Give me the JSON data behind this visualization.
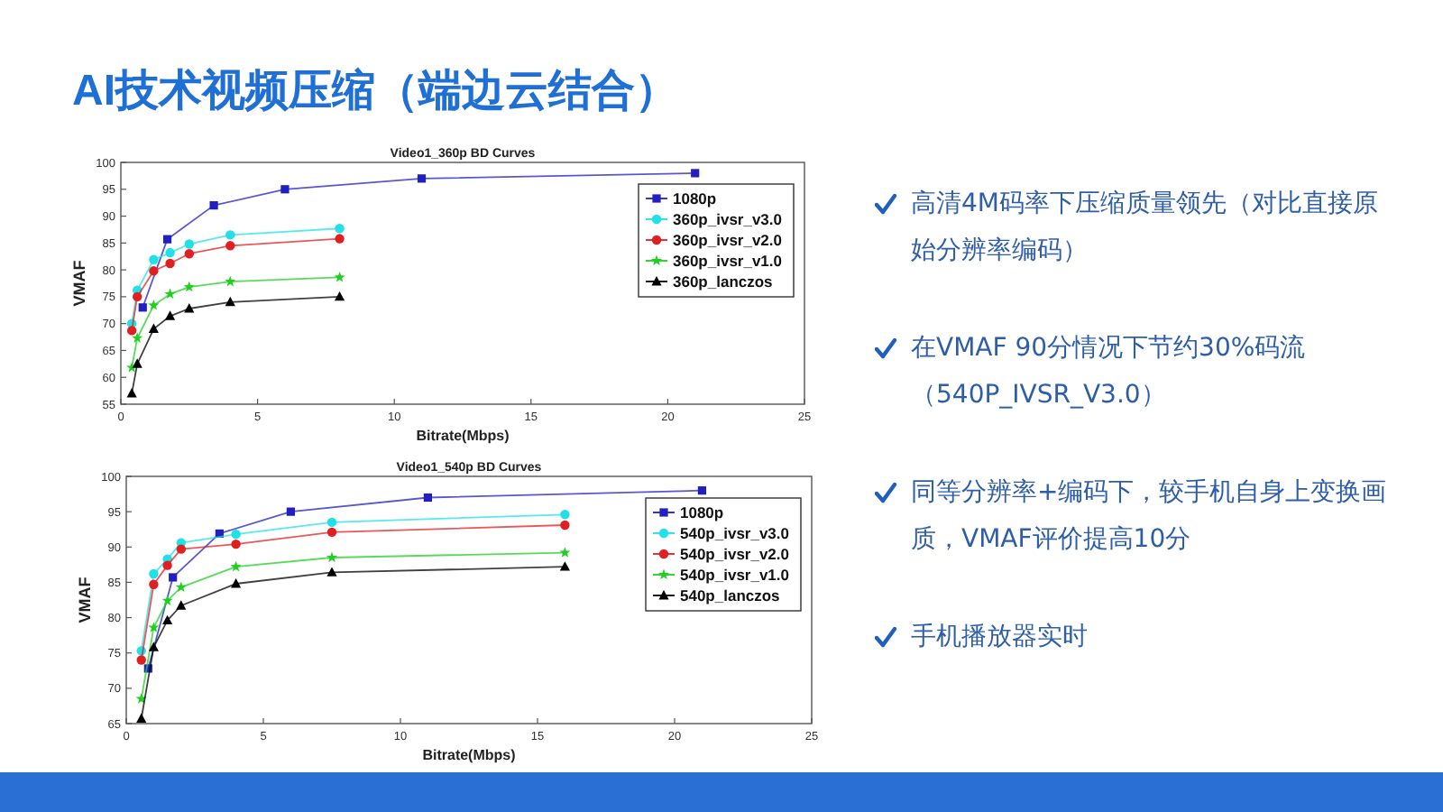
{
  "chart_data": [
    {
      "type": "line",
      "title": "Video1_360p  BD Curves",
      "xlabel": "Bitrate(Mbps)",
      "ylabel": "VMAF",
      "xlim": [
        0,
        25
      ],
      "ylim": [
        55,
        100
      ],
      "xticks": [
        0,
        5,
        10,
        15,
        20,
        25
      ],
      "yticks": [
        55,
        60,
        65,
        70,
        75,
        80,
        85,
        90,
        95,
        100
      ],
      "legend": "top right",
      "series": [
        {
          "name": "1080p",
          "color": "#2020c0",
          "marker": "square",
          "x": [
            0.8,
            1.7,
            3.4,
            6,
            11,
            21
          ],
          "values": [
            73,
            85.7,
            92,
            95,
            97,
            98
          ]
        },
        {
          "name": "360p_ivsr_v3.0",
          "color": "#20e0e8",
          "marker": "circle",
          "x": [
            0.4,
            0.6,
            1.2,
            1.8,
            2.5,
            4,
            8
          ],
          "values": [
            70,
            76.2,
            81.9,
            83.2,
            84.8,
            86.5,
            87.7
          ]
        },
        {
          "name": "360p_ivsr_v2.0",
          "color": "#e02020",
          "marker": "circle",
          "x": [
            0.4,
            0.6,
            1.2,
            1.8,
            2.5,
            4,
            8
          ],
          "values": [
            68.7,
            75,
            79.8,
            81.2,
            83,
            84.5,
            85.8
          ]
        },
        {
          "name": "360p_ivsr_v1.0",
          "color": "#20d020",
          "marker": "star",
          "x": [
            0.4,
            0.6,
            1.2,
            1.8,
            2.5,
            4,
            8
          ],
          "values": [
            61.8,
            67.3,
            73.4,
            75.5,
            76.8,
            77.8,
            78.6
          ]
        },
        {
          "name": "360p_lanczos",
          "color": "#000000",
          "marker": "triangle",
          "x": [
            0.4,
            0.6,
            1.2,
            1.8,
            2.5,
            4,
            8
          ],
          "values": [
            57,
            62.5,
            69,
            71.4,
            72.8,
            74,
            75
          ]
        }
      ]
    },
    {
      "type": "line",
      "title": "Video1_540p  BD Curves",
      "xlabel": "Bitrate(Mbps)",
      "ylabel": "VMAF",
      "xlim": [
        0,
        25
      ],
      "ylim": [
        65,
        100
      ],
      "xticks": [
        0,
        5,
        10,
        15,
        20,
        25
      ],
      "yticks": [
        65,
        70,
        75,
        80,
        85,
        90,
        95,
        100
      ],
      "legend": "top right",
      "series": [
        {
          "name": "1080p",
          "color": "#2020c0",
          "marker": "square",
          "x": [
            0.8,
            1.7,
            3.4,
            6,
            11,
            21
          ],
          "values": [
            72.8,
            85.7,
            91.9,
            95,
            97,
            98
          ]
        },
        {
          "name": "540p_ivsr_v3.0",
          "color": "#20e0e8",
          "marker": "circle",
          "x": [
            0.55,
            1,
            1.5,
            2,
            4,
            7.5,
            16
          ],
          "values": [
            75.3,
            86.2,
            88.3,
            90.6,
            91.8,
            93.5,
            94.6
          ]
        },
        {
          "name": "540p_ivsr_v2.0",
          "color": "#e02020",
          "marker": "circle",
          "x": [
            0.55,
            1,
            1.5,
            2,
            4,
            7.5,
            16
          ],
          "values": [
            74,
            84.7,
            87.4,
            89.7,
            90.4,
            92.1,
            93.1
          ]
        },
        {
          "name": "540p_ivsr_v1.0",
          "color": "#20d020",
          "marker": "star",
          "x": [
            0.55,
            1,
            1.5,
            2,
            4,
            7.5,
            16
          ],
          "values": [
            68.5,
            78.6,
            82.4,
            84.3,
            87.2,
            88.5,
            89.2
          ]
        },
        {
          "name": "540p_lanczos",
          "color": "#000000",
          "marker": "triangle",
          "x": [
            0.55,
            1,
            1.5,
            2,
            4,
            7.5,
            16
          ],
          "values": [
            65.7,
            75.8,
            79.6,
            81.7,
            84.8,
            86.4,
            87.2
          ]
        }
      ]
    },
    {
      "type": "other",
      "title": "AI技术视频压缩（端边云结合）",
      "annotations": [
        "高清4M码率下压缩质量领先（对比直接原始分辨率编码）",
        "在VMAF 90分情况下节约30%码流（540P_IVSR_V3.0）",
        "同等分辨率+编码下，较手机自身上变换画质，VMAF评价提高10分",
        "手机播放器实时"
      ]
    }
  ]
}
